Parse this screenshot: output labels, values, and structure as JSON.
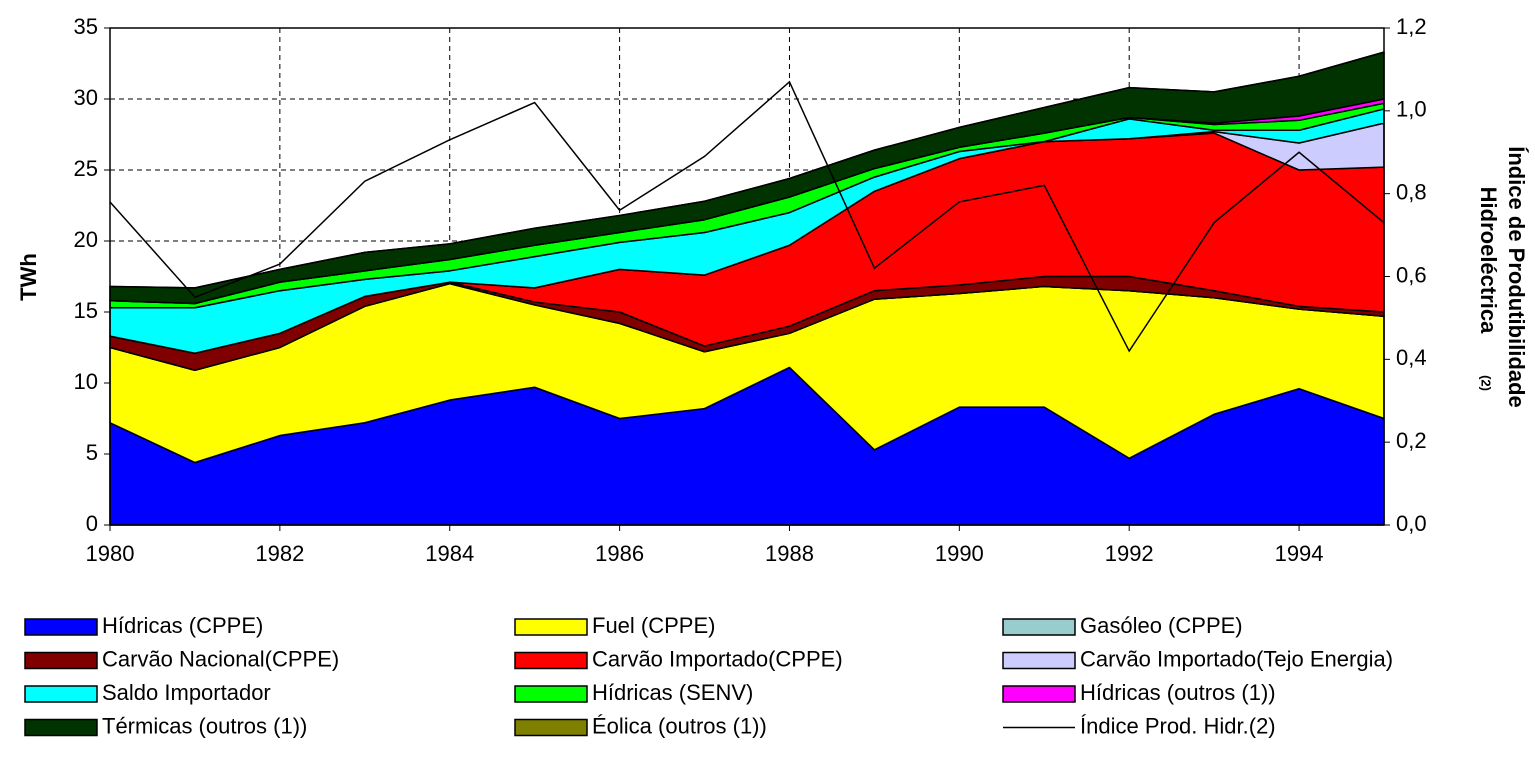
{
  "chart_data": {
    "type": "stacked_area",
    "y_label": "TWh",
    "y2_label_lines": [
      "Índice de Produtibilidade",
      "Hidroeléctrica"
    ],
    "y2_label_note": "(2)",
    "x": [
      1980,
      1981,
      1982,
      1983,
      1984,
      1985,
      1986,
      1987,
      1988,
      1989,
      1990,
      1991,
      1992,
      1993,
      1994,
      1995
    ],
    "xlim": [
      1980,
      1995
    ],
    "xticks": [
      1980,
      1982,
      1984,
      1986,
      1988,
      1990,
      1992,
      1994
    ],
    "ylim": [
      0,
      35
    ],
    "yticks": [
      0,
      5,
      10,
      15,
      20,
      25,
      30,
      35
    ],
    "y2lim": [
      0,
      1.2
    ],
    "y2ticks": [
      {
        "value": 0,
        "label": "0,0"
      },
      {
        "value": 0.2,
        "label": "0,2"
      },
      {
        "value": 0.4,
        "label": "0,4"
      },
      {
        "value": 0.6,
        "label": "0,6"
      },
      {
        "value": 0.8,
        "label": "0,8"
      },
      {
        "value": 1.0,
        "label": "1,0"
      },
      {
        "value": 1.2,
        "label": "1,2"
      }
    ],
    "grid": true,
    "series": [
      {
        "name": "Hídricas (CPPE)",
        "color": "#0000ff",
        "values": [
          7.2,
          4.4,
          6.3,
          7.2,
          8.8,
          9.7,
          7.5,
          8.2,
          11.1,
          5.3,
          8.3,
          8.3,
          4.7,
          7.8,
          9.6,
          7.5
        ]
      },
      {
        "name": "Fuel (CPPE)",
        "color": "#ffff00",
        "values": [
          5.3,
          6.5,
          6.2,
          8.2,
          8.2,
          5.8,
          6.7,
          4.0,
          2.4,
          10.6,
          8.0,
          8.5,
          11.8,
          8.2,
          5.6,
          7.2
        ]
      },
      {
        "name": "Gasóleo (CPPE)",
        "color": "#99cccc",
        "values": [
          0,
          0,
          0,
          0,
          0,
          0,
          0,
          0,
          0,
          0,
          0,
          0,
          0,
          0,
          0,
          0
        ]
      },
      {
        "name": "Carvão Nacional(CPPE)",
        "color": "#800000",
        "values": [
          0.8,
          1.2,
          1.0,
          0.7,
          0.1,
          0.2,
          0.8,
          0.4,
          0.5,
          0.6,
          0.6,
          0.7,
          1.0,
          0.5,
          0.2,
          0.3
        ]
      },
      {
        "name": "Carvão Importado(CPPE)",
        "color": "#ff0000",
        "values": [
          0,
          0,
          0,
          0,
          0,
          1.0,
          3.0,
          5.0,
          5.7,
          7.0,
          8.9,
          9.5,
          9.7,
          11.1,
          9.6,
          10.2
        ]
      },
      {
        "name": "Carvão Importado(Tejo Energia)",
        "color": "#ccccff",
        "values": [
          0,
          0,
          0,
          0,
          0,
          0,
          0,
          0,
          0,
          0,
          0,
          0,
          0,
          0.1,
          1.9,
          3.1
        ]
      },
      {
        "name": "Saldo Importador",
        "color": "#00ffff",
        "values": [
          2.0,
          3.2,
          3.0,
          1.2,
          0.8,
          2.2,
          1.9,
          3.0,
          2.3,
          1.0,
          0.5,
          0,
          1.4,
          0.1,
          0.9,
          1.0
        ]
      },
      {
        "name": "Hídricas (SENV)",
        "color": "#00ff00",
        "values": [
          0.5,
          0.3,
          0.6,
          0.6,
          0.8,
          0.8,
          0.7,
          0.9,
          1.1,
          0.6,
          0.3,
          0.6,
          0.1,
          0.4,
          0.7,
          0.4
        ]
      },
      {
        "name": "Hídricas (outros (1))",
        "color": "#ff00ff",
        "values": [
          0,
          0,
          0,
          0,
          0,
          0,
          0,
          0,
          0,
          0,
          0,
          0,
          0,
          0.1,
          0.3,
          0.3
        ]
      },
      {
        "name": "Térmicas (outros (1))",
        "color": "#003300",
        "values": [
          1.0,
          1.1,
          0.9,
          1.3,
          1.1,
          1.2,
          1.2,
          1.3,
          1.3,
          1.3,
          1.4,
          1.8,
          2.1,
          2.2,
          2.8,
          3.3
        ]
      },
      {
        "name": "Éolica (outros (1))",
        "color": "#808000",
        "values": [
          0,
          0,
          0,
          0,
          0,
          0,
          0,
          0,
          0,
          0,
          0,
          0,
          0,
          0,
          0,
          0
        ]
      },
      {
        "name": "Índice Prod. Hidr.(2)",
        "color": "#000000",
        "type": "line",
        "axis": "y2",
        "values": [
          0.78,
          0.55,
          0.63,
          0.83,
          0.93,
          1.02,
          0.76,
          0.89,
          1.07,
          0.62,
          0.78,
          0.82,
          0.42,
          0.73,
          0.9,
          0.73
        ]
      }
    ]
  }
}
